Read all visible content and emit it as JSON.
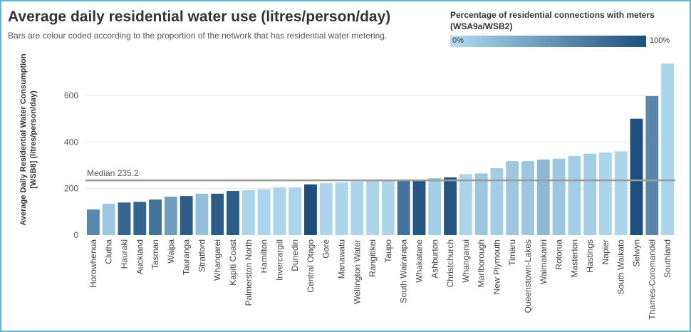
{
  "header": {
    "title": "Average daily residential water use (litres/person/day)",
    "subtitle": "Bars are colour coded according to the proportion of the network that has residential water metering."
  },
  "legend": {
    "title_line1": "Percentage of residential connections with meters",
    "title_line2": "(WSA9a/WSB2)",
    "min_label": "0%",
    "max_label": "100%",
    "color_low": "#b3dcf2",
    "color_high": "#1d4f7d"
  },
  "chart_data": {
    "type": "bar",
    "ylabel_line1": "Average Daily Residential Water Consumption",
    "ylabel_line2": "[WSB8] (litres/person/day)",
    "ylim": [
      0,
      750
    ],
    "yticks": [
      0,
      200,
      400,
      600
    ],
    "grid": true,
    "median": {
      "value": 235.2,
      "label": "Median 235.2"
    },
    "categories": [
      "Horowhenua",
      "Clutha",
      "Hauraki",
      "Auckland",
      "Tasman",
      "Waipa",
      "Tauranga",
      "Stratford",
      "Whangarei",
      "Kapiti Coast",
      "Palmerston North",
      "Hamilton",
      "Invercargill",
      "Dunedin",
      "Central Otago",
      "Gore",
      "Manawatu",
      "Wellington Water",
      "Rangitikei",
      "Taupo",
      "South Wairarapa",
      "Whakatane",
      "Ashburton",
      "Christchurch",
      "Whanganui",
      "Marlborough",
      "New Plymouth",
      "Timaru",
      "Queenstown-Lakes",
      "Waimakariri",
      "Rotorua",
      "Masterton",
      "Hastings",
      "Napier",
      "South Waikato",
      "Selwyn",
      "Thames-Coromandel",
      "Southland"
    ],
    "values": [
      110,
      135,
      140,
      143,
      153,
      165,
      168,
      178,
      178,
      190,
      193,
      197,
      205,
      205,
      218,
      223,
      226,
      230,
      233,
      235,
      235,
      238,
      245,
      248,
      262,
      265,
      288,
      318,
      318,
      325,
      328,
      340,
      350,
      355,
      360,
      500,
      597,
      737
    ],
    "metering_percent": [
      60,
      15,
      85,
      85,
      75,
      45,
      90,
      20,
      90,
      90,
      5,
      5,
      5,
      5,
      100,
      5,
      5,
      5,
      5,
      5,
      75,
      95,
      10,
      95,
      5,
      15,
      10,
      15,
      15,
      25,
      15,
      10,
      10,
      5,
      5,
      100,
      60,
      5
    ]
  }
}
